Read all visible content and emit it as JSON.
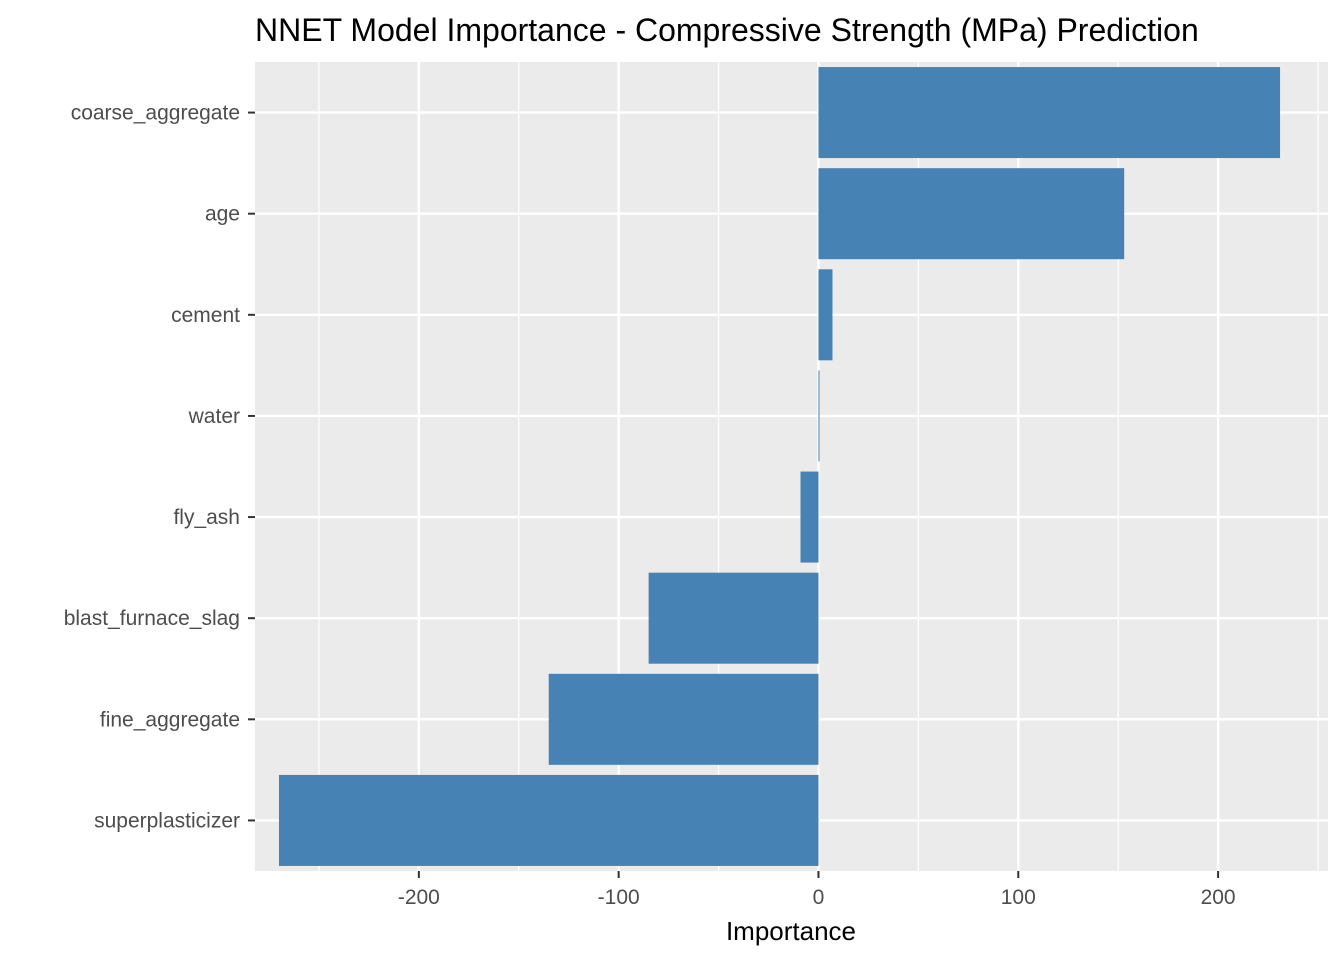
{
  "chart_data": {
    "type": "bar",
    "orientation": "horizontal",
    "title": "NNET Model Importance - Compressive Strength (MPa) Prediction",
    "xlabel": "Importance",
    "ylabel": "",
    "categories": [
      "coarse_aggregate",
      "age",
      "cement",
      "water",
      "fly_ash",
      "blast_furnace_slag",
      "fine_aggregate",
      "superplasticizer"
    ],
    "values": [
      231,
      153,
      7,
      0.5,
      -9,
      -85,
      -135,
      -270
    ],
    "xlim": [
      -282,
      255
    ],
    "x_ticks": [
      -200,
      -100,
      0,
      100,
      200
    ],
    "x_tick_labels": [
      "-200",
      "-100",
      "0",
      "100",
      "200"
    ],
    "bar_color": "#4682B4",
    "panel_background": "#EBEBEB",
    "grid_color": "#FFFFFF",
    "grid": true,
    "legend": "none"
  }
}
